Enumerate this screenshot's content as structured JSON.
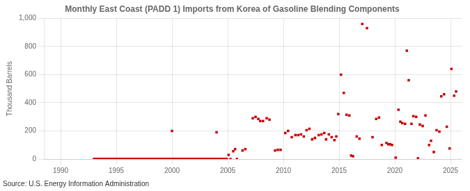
{
  "chart_data": {
    "type": "scatter",
    "title": "Monthly East Coast (PADD 1) Imports from Korea of Gasoline Blending Components",
    "ylabel": "Thousand Barrels",
    "source": "Source: U.S. Energy Information Administration",
    "color": "#cc0000",
    "marker": "square",
    "grid": true,
    "xlim": [
      1988.5,
      2026
    ],
    "xticks": [
      1990,
      1995,
      2000,
      2005,
      2010,
      2015,
      2020,
      2025
    ],
    "ylim": [
      0,
      1000
    ],
    "yticks": [
      0,
      200,
      400,
      600,
      800,
      {
        "value": 1000,
        "label": "1,000"
      }
    ],
    "x": [
      1993.0,
      1993.08,
      1993.17,
      1993.25,
      1993.33,
      1993.42,
      1993.5,
      1993.58,
      1993.67,
      1993.75,
      1993.83,
      1993.92,
      1994.0,
      1994.08,
      1994.17,
      1994.25,
      1994.33,
      1994.42,
      1994.5,
      1994.58,
      1994.67,
      1994.75,
      1994.83,
      1994.92,
      1995.0,
      1995.08,
      1995.17,
      1995.25,
      1995.33,
      1995.42,
      1995.5,
      1995.58,
      1995.67,
      1995.75,
      1995.83,
      1995.92,
      1996.0,
      1996.08,
      1996.17,
      1996.25,
      1996.33,
      1996.42,
      1996.5,
      1996.58,
      1996.67,
      1996.75,
      1996.83,
      1996.92,
      1997.0,
      1997.08,
      1997.17,
      1997.25,
      1997.33,
      1997.42,
      1997.5,
      1997.58,
      1997.67,
      1997.75,
      1997.83,
      1997.92,
      1998.0,
      1998.08,
      1998.17,
      1998.25,
      1998.33,
      1998.42,
      1998.5,
      1998.58,
      1998.67,
      1998.75,
      1998.83,
      1998.92,
      1999.0,
      1999.08,
      1999.17,
      1999.25,
      1999.33,
      1999.42,
      1999.5,
      1999.58,
      1999.67,
      1999.75,
      1999.83,
      1999.92,
      2000.0,
      2000.08,
      2000.17,
      2000.25,
      2000.33,
      2000.42,
      2000.5,
      2000.58,
      2000.67,
      2000.75,
      2000.83,
      2000.92,
      2001.0,
      2001.08,
      2001.17,
      2001.25,
      2001.33,
      2001.42,
      2001.5,
      2001.58,
      2001.67,
      2001.75,
      2001.83,
      2001.92,
      2002.0,
      2002.08,
      2002.17,
      2002.25,
      2002.33,
      2002.42,
      2002.5,
      2002.58,
      2002.67,
      2002.75,
      2002.83,
      2002.92,
      2003.0,
      2003.08,
      2003.17,
      2003.25,
      2003.33,
      2003.42,
      2003.5,
      2003.58,
      2003.67,
      2003.75,
      2003.83,
      2003.92,
      2004.0,
      2004.08,
      2004.17,
      2004.25,
      2004.33,
      2004.42,
      2004.5,
      2004.58,
      2004.67,
      2004.75,
      2004.83,
      2004.92,
      2005.08,
      2005.25,
      2005.5,
      2005.67,
      2005.83,
      2006.33,
      2006.58,
      2007.25,
      2007.5,
      2007.75,
      2007.92,
      2008.17,
      2008.5,
      2008.75,
      2009.25,
      2009.5,
      2009.75,
      2010.17,
      2010.42,
      2010.75,
      2011.08,
      2011.33,
      2011.58,
      2011.83,
      2012.08,
      2012.33,
      2012.58,
      2012.83,
      2013.17,
      2013.42,
      2013.67,
      2013.83,
      2014.08,
      2014.33,
      2014.58,
      2014.75,
      2014.92,
      2015.17,
      2015.42,
      2015.67,
      2015.92,
      2016.08,
      2016.25,
      2016.58,
      2016.83,
      2017.08,
      2017.5,
      2018.0,
      2018.33,
      2018.58,
      2018.83,
      2019.25,
      2019.42,
      2019.58,
      2019.75,
      2020.08,
      2020.33,
      2020.5,
      2020.67,
      2020.92,
      2021.08,
      2021.25,
      2021.5,
      2021.67,
      2021.92,
      2022.08,
      2022.25,
      2022.5,
      2022.75,
      2023.08,
      2023.25,
      2023.5,
      2023.75,
      2024.0,
      2024.17,
      2024.42,
      2024.67,
      2024.92,
      2025.08,
      2025.33,
      2025.5
    ],
    "values": [
      0,
      0,
      0,
      0,
      0,
      0,
      0,
      0,
      0,
      0,
      0,
      0,
      0,
      0,
      0,
      0,
      0,
      0,
      0,
      0,
      0,
      0,
      0,
      0,
      0,
      0,
      0,
      0,
      0,
      0,
      0,
      0,
      0,
      0,
      0,
      0,
      0,
      0,
      0,
      0,
      0,
      0,
      0,
      0,
      0,
      0,
      0,
      0,
      0,
      0,
      0,
      0,
      0,
      0,
      0,
      0,
      0,
      0,
      0,
      0,
      0,
      0,
      0,
      0,
      0,
      0,
      0,
      0,
      0,
      0,
      0,
      0,
      0,
      0,
      0,
      0,
      0,
      0,
      0,
      0,
      0,
      0,
      0,
      0,
      200,
      0,
      0,
      0,
      0,
      0,
      0,
      0,
      0,
      0,
      0,
      0,
      0,
      0,
      0,
      0,
      0,
      0,
      0,
      0,
      0,
      0,
      0,
      0,
      0,
      0,
      0,
      0,
      0,
      0,
      0,
      0,
      0,
      0,
      0,
      0,
      0,
      0,
      0,
      0,
      0,
      0,
      0,
      0,
      0,
      0,
      0,
      0,
      190,
      0,
      0,
      0,
      0,
      0,
      0,
      0,
      0,
      0,
      0,
      0,
      30,
      0,
      55,
      70,
      0,
      60,
      70,
      290,
      300,
      285,
      270,
      270,
      290,
      280,
      60,
      65,
      65,
      185,
      200,
      155,
      170,
      170,
      175,
      160,
      205,
      215,
      140,
      150,
      170,
      175,
      185,
      140,
      175,
      155,
      135,
      160,
      320,
      600,
      470,
      315,
      310,
      25,
      20,
      160,
      145,
      960,
      930,
      155,
      285,
      295,
      100,
      115,
      105,
      105,
      100,
      10,
      350,
      265,
      255,
      250,
      770,
      560,
      250,
      305,
      300,
      5,
      245,
      235,
      310,
      100,
      130,
      50,
      205,
      195,
      445,
      460,
      230,
      75,
      640,
      450,
      480
    ]
  }
}
